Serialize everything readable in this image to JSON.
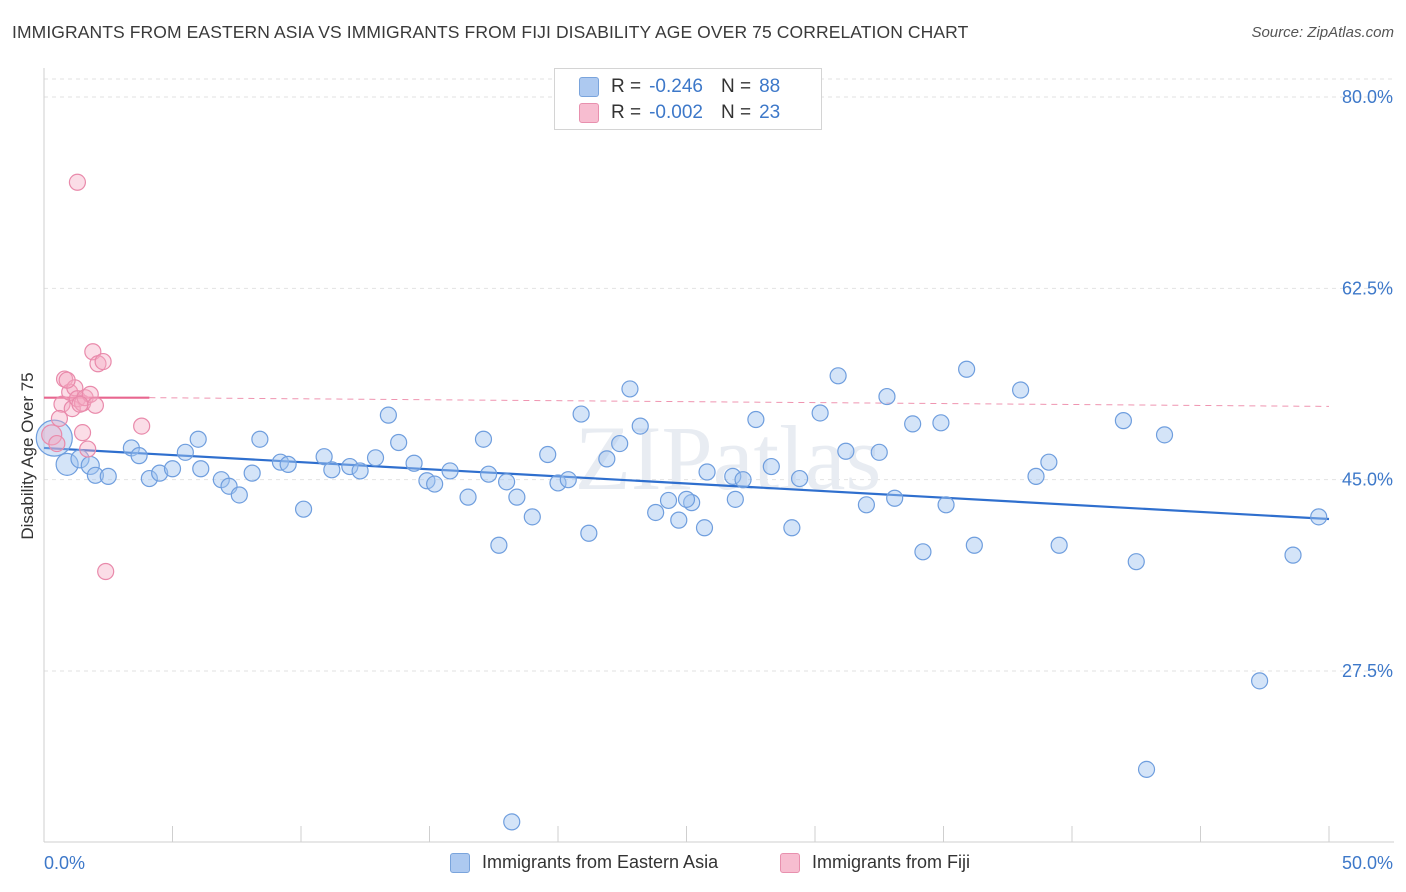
{
  "title": "IMMIGRANTS FROM EASTERN ASIA VS IMMIGRANTS FROM FIJI DISABILITY AGE OVER 75 CORRELATION CHART",
  "source": "Source: ZipAtlas.com",
  "watermark": "ZIPatlas",
  "stats": [
    {
      "r_label": "R =",
      "r_value": "-0.246",
      "n_label": "N =",
      "n_value": "88",
      "swatch": "#adc9f0",
      "border": "#7aa4dc"
    },
    {
      "r_label": "R =",
      "r_value": "-0.002",
      "n_label": "N =",
      "n_value": "23",
      "swatch": "#f7bdd0",
      "border": "#e890ae"
    }
  ],
  "legend": [
    {
      "label": "Immigrants from Eastern Asia",
      "swatch": "#adc9f0",
      "border": "#7aa4dc"
    },
    {
      "label": "Immigrants from Fiji",
      "swatch": "#f7bdd0",
      "border": "#e890ae"
    }
  ],
  "colors": {
    "blue_fill": "rgba(160,195,240,0.45)",
    "blue_stroke": "#6f9ede",
    "blue_line": "#2f6fce",
    "pink_fill": "rgba(245,170,195,0.40)",
    "pink_stroke": "#e98aab",
    "pink_line": "#e8668f",
    "grid": "#e2e2e2",
    "tick_label": "#3d78c9"
  },
  "chart_data": {
    "type": "scatter",
    "title": "IMMIGRANTS FROM EASTERN ASIA VS IMMIGRANTS FROM FIJI DISABILITY AGE OVER 75 CORRELATION CHART",
    "xlabel": "",
    "ylabel": "Disability Age Over 75",
    "xlim": [
      0,
      50
    ],
    "ylim": [
      10,
      85
    ],
    "x_tick_labels": [
      "0.0%",
      "50.0%"
    ],
    "y_ticks": [
      27.5,
      45.0,
      62.5,
      80.0
    ],
    "y_tick_labels": [
      "27.5%",
      "45.0%",
      "62.5%",
      "80.0%"
    ],
    "grid": true,
    "legend_position": "bottom",
    "series": [
      {
        "name": "Immigrants from Eastern Asia",
        "points": [
          [
            0.4,
            48.8,
            18
          ],
          [
            0.9,
            46.4,
            11
          ],
          [
            1.4,
            46.9,
            9
          ],
          [
            1.8,
            46.3,
            9
          ],
          [
            2.0,
            45.4,
            8
          ],
          [
            2.5,
            45.3,
            8
          ],
          [
            3.4,
            47.9,
            8
          ],
          [
            3.7,
            47.2,
            8
          ],
          [
            4.1,
            45.1,
            8
          ],
          [
            4.5,
            45.6,
            8
          ],
          [
            5.0,
            46.0,
            8
          ],
          [
            5.5,
            47.5,
            8
          ],
          [
            6.0,
            48.7,
            8
          ],
          [
            6.1,
            46.0,
            8
          ],
          [
            6.9,
            45.0,
            8
          ],
          [
            7.2,
            44.4,
            8
          ],
          [
            7.6,
            43.6,
            8
          ],
          [
            8.1,
            45.6,
            8
          ],
          [
            8.4,
            48.7,
            8
          ],
          [
            9.2,
            46.6,
            8
          ],
          [
            9.5,
            46.4,
            8
          ],
          [
            10.1,
            42.3,
            8
          ],
          [
            10.9,
            47.1,
            8
          ],
          [
            11.2,
            45.9,
            8
          ],
          [
            11.9,
            46.2,
            8
          ],
          [
            12.3,
            45.8,
            8
          ],
          [
            12.9,
            47.0,
            8
          ],
          [
            13.4,
            50.9,
            8
          ],
          [
            13.8,
            48.4,
            8
          ],
          [
            14.4,
            46.5,
            8
          ],
          [
            14.9,
            44.9,
            8
          ],
          [
            15.2,
            44.6,
            8
          ],
          [
            15.8,
            45.8,
            8
          ],
          [
            16.5,
            43.4,
            8
          ],
          [
            17.1,
            48.7,
            8
          ],
          [
            17.3,
            45.5,
            8
          ],
          [
            17.7,
            39.0,
            8
          ],
          [
            18.0,
            44.8,
            8
          ],
          [
            18.4,
            43.4,
            8
          ],
          [
            19.0,
            41.6,
            8
          ],
          [
            19.6,
            47.3,
            8
          ],
          [
            20.0,
            44.7,
            8
          ],
          [
            20.4,
            45.0,
            8
          ],
          [
            20.9,
            51.0,
            8
          ],
          [
            21.2,
            40.1,
            8
          ],
          [
            21.9,
            46.9,
            8
          ],
          [
            22.4,
            48.3,
            8
          ],
          [
            22.8,
            53.3,
            8
          ],
          [
            23.2,
            49.9,
            8
          ],
          [
            23.8,
            42.0,
            8
          ],
          [
            24.3,
            43.1,
            8
          ],
          [
            24.7,
            41.3,
            8
          ],
          [
            25.2,
            42.9,
            8
          ],
          [
            25.7,
            40.6,
            8
          ],
          [
            25.8,
            45.7,
            8
          ],
          [
            26.8,
            45.3,
            8
          ],
          [
            26.9,
            43.2,
            8
          ],
          [
            27.2,
            45.0,
            8
          ],
          [
            27.7,
            50.5,
            8
          ],
          [
            28.3,
            46.2,
            8
          ],
          [
            29.1,
            40.6,
            8
          ],
          [
            29.4,
            45.1,
            8
          ],
          [
            30.2,
            51.1,
            8
          ],
          [
            30.9,
            54.5,
            8
          ],
          [
            31.2,
            47.6,
            8
          ],
          [
            32.0,
            42.7,
            8
          ],
          [
            32.5,
            47.5,
            8
          ],
          [
            32.8,
            52.6,
            8
          ],
          [
            33.1,
            43.3,
            8
          ],
          [
            33.8,
            50.1,
            8
          ],
          [
            34.2,
            38.4,
            8
          ],
          [
            34.9,
            50.2,
            8
          ],
          [
            35.1,
            42.7,
            8
          ],
          [
            35.9,
            55.1,
            8
          ],
          [
            36.2,
            39.0,
            8
          ],
          [
            38.0,
            53.2,
            8
          ],
          [
            38.6,
            45.3,
            8
          ],
          [
            39.1,
            46.6,
            8
          ],
          [
            39.5,
            39.0,
            8
          ],
          [
            42.0,
            50.4,
            8
          ],
          [
            42.5,
            37.5,
            8
          ],
          [
            42.9,
            18.5,
            8
          ],
          [
            43.6,
            49.1,
            8
          ],
          [
            47.3,
            26.6,
            8
          ],
          [
            18.2,
            13.7,
            8
          ],
          [
            48.6,
            38.1,
            8
          ],
          [
            49.6,
            41.6,
            8
          ],
          [
            25.0,
            43.2,
            8
          ]
        ]
      },
      {
        "name": "Immigrants from Fiji",
        "points": [
          [
            0.3,
            49.1,
            10
          ],
          [
            0.5,
            48.3,
            8
          ],
          [
            0.7,
            51.9,
            8
          ],
          [
            0.8,
            54.2,
            8
          ],
          [
            1.0,
            53.0,
            8
          ],
          [
            1.1,
            51.5,
            8
          ],
          [
            1.2,
            53.4,
            8
          ],
          [
            1.3,
            52.4,
            8
          ],
          [
            1.3,
            72.2,
            8
          ],
          [
            1.5,
            52.0,
            8
          ],
          [
            1.5,
            49.3,
            8
          ],
          [
            1.6,
            52.5,
            8
          ],
          [
            1.7,
            47.8,
            8
          ],
          [
            1.8,
            52.8,
            8
          ],
          [
            1.9,
            56.7,
            8
          ],
          [
            2.0,
            51.8,
            8
          ],
          [
            2.1,
            55.6,
            8
          ],
          [
            2.3,
            55.8,
            8
          ],
          [
            2.4,
            36.6,
            8
          ],
          [
            0.6,
            50.6,
            8
          ],
          [
            3.8,
            49.9,
            8
          ],
          [
            0.9,
            54.1,
            8
          ],
          [
            1.4,
            51.9,
            8
          ]
        ]
      }
    ],
    "trendlines": [
      {
        "series": "Immigrants from Eastern Asia",
        "x": [
          0,
          50
        ],
        "y": [
          47.9,
          41.4
        ],
        "style": "solid"
      },
      {
        "series": "Immigrants from Fiji",
        "x": [
          0,
          4.1
        ],
        "y": [
          52.5,
          52.5
        ],
        "style": "solid"
      },
      {
        "series": "Immigrants from Fiji",
        "x": [
          4.1,
          50
        ],
        "y": [
          52.5,
          51.7
        ],
        "style": "dashed"
      }
    ]
  }
}
